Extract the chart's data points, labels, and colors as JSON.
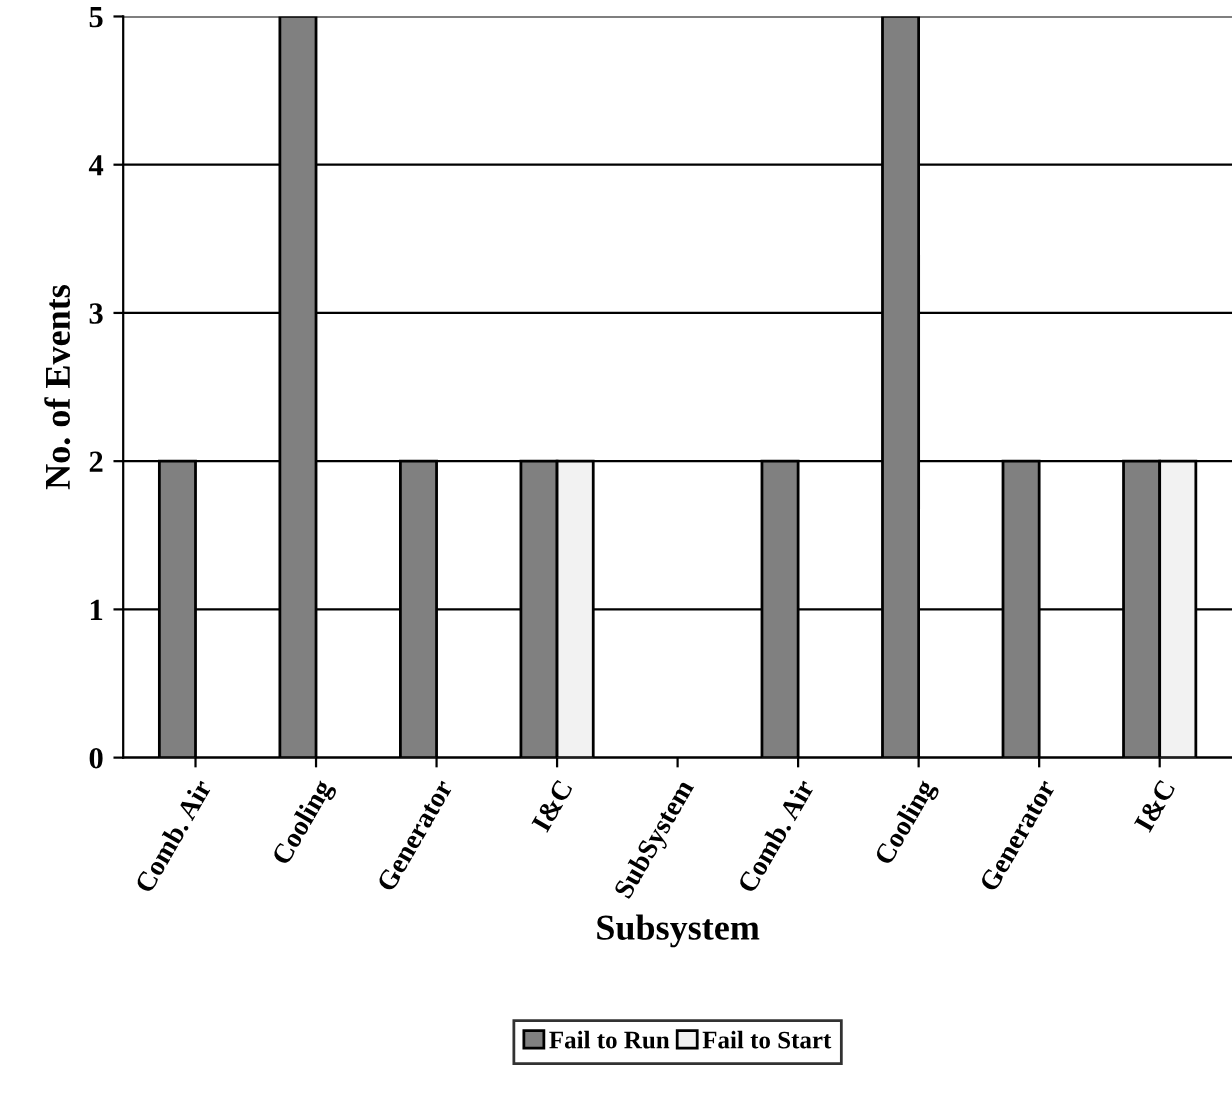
{
  "chart_data": {
    "type": "bar",
    "xlabel": "Subsystem",
    "ylabel": "No. of Events",
    "categories": [
      "Comb. Air",
      "Cooling",
      "Generator",
      "I&C",
      "SubSystem",
      "Comb. Air",
      "Cooling",
      "Generator",
      "I&C"
    ],
    "series": [
      {
        "name": "Fail to Run",
        "color": "#808080",
        "values": [
          2,
          5,
          2,
          2,
          0,
          2,
          5,
          2,
          2
        ]
      },
      {
        "name": "Fail to Start",
        "color": "#f2f2f2",
        "values": [
          0,
          0,
          0,
          2,
          0,
          0,
          0,
          0,
          2
        ]
      }
    ],
    "ylim": [
      0,
      5
    ],
    "yticks": [
      0,
      1,
      2,
      3,
      4,
      5
    ],
    "grid": "y",
    "legend": "bottom"
  }
}
